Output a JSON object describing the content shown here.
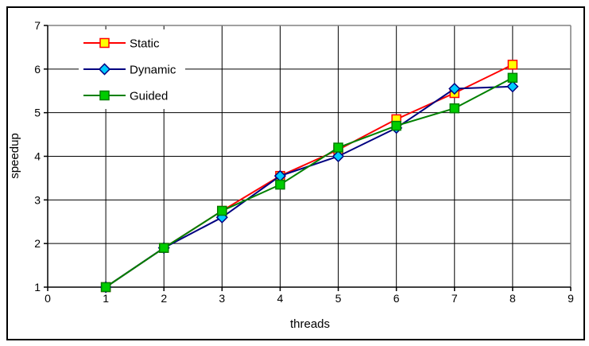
{
  "chart_data": {
    "type": "line",
    "title": "",
    "xlabel": "threads",
    "ylabel": "speedup",
    "xlim": [
      0,
      9
    ],
    "ylim": [
      1,
      7
    ],
    "x_ticks": [
      0,
      1,
      2,
      3,
      4,
      5,
      6,
      7,
      8,
      9
    ],
    "y_ticks": [
      1,
      2,
      3,
      4,
      5,
      6,
      7
    ],
    "x": [
      1,
      2,
      3,
      4,
      5,
      6,
      7,
      8
    ],
    "grid": true,
    "legend_position": "inside-top-left",
    "background": "#FFFFFF",
    "gridline_color": "#000000",
    "axis_color": "#000000",
    "frame_color": "#808080",
    "outer_border_color": "#000000",
    "series": [
      {
        "name": "Static",
        "marker": "square",
        "line_color": "#FF0000",
        "marker_fill": "#FFFF00",
        "marker_border": "#FF0000",
        "values": [
          1.0,
          1.9,
          2.75,
          3.55,
          4.15,
          4.85,
          5.45,
          6.1
        ]
      },
      {
        "name": "Dynamic",
        "marker": "diamond",
        "line_color": "#000080",
        "marker_fill": "#00CCFF",
        "marker_border": "#000080",
        "values": [
          1.0,
          1.9,
          2.6,
          3.55,
          4.0,
          4.65,
          5.55,
          5.6
        ]
      },
      {
        "name": "Guided",
        "marker": "square",
        "line_color": "#008000",
        "marker_fill": "#00CC00",
        "marker_border": "#008000",
        "values": [
          1.0,
          1.9,
          2.75,
          3.35,
          4.2,
          4.7,
          5.1,
          5.8
        ]
      }
    ]
  }
}
